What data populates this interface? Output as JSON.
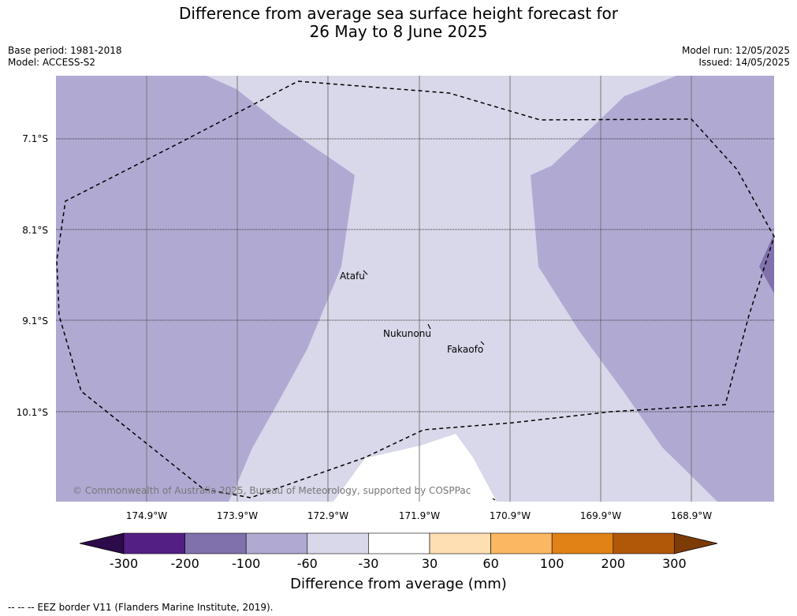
{
  "title": {
    "line1": "Difference from average sea surface height forecast for",
    "line2": "26 May to 8 June 2025"
  },
  "meta": {
    "base_period": "Base period: 1981-2018",
    "model": "Model: ACCESS-S2",
    "model_run": "Model run: 12/05/2025",
    "issued": "Issued: 14/05/2025"
  },
  "map": {
    "lat_labels": [
      "7.1°S",
      "8.1°S",
      "9.1°S",
      "10.1°S"
    ],
    "lon_labels": [
      "174.9°W",
      "173.9°W",
      "172.9°W",
      "171.9°W",
      "170.9°W",
      "169.9°W",
      "168.9°W"
    ],
    "places": [
      "Atafu",
      "Nukunonu",
      "Fakaofo"
    ],
    "copyright": "© Commonwealth of Australia 2025, Bureau of Meteorology, supported by COSPPac",
    "colors": {
      "minus200_to_minus100": "#8071ad",
      "minus100_to_minus60": "#b0aad3",
      "minus60_to_minus30": "#d8d8ea",
      "minus30_to_30": "#ffffff"
    }
  },
  "colorbar": {
    "ticks": [
      "-300",
      "-200",
      "-100",
      "-60",
      "-30",
      "30",
      "60",
      "100",
      "200",
      "300"
    ],
    "colors": [
      "#531f84",
      "#8071ad",
      "#b0aad3",
      "#d8d8ea",
      "#ffffff",
      "#fedfb3",
      "#fbb761",
      "#e08216",
      "#b05708"
    ],
    "under_color": "#2d0a4a",
    "over_color": "#7d3b08",
    "label": "Difference from average (mm)"
  },
  "footnote": "--  --  -- EEZ border V11 (Flanders Marine Institute, 2019)."
}
